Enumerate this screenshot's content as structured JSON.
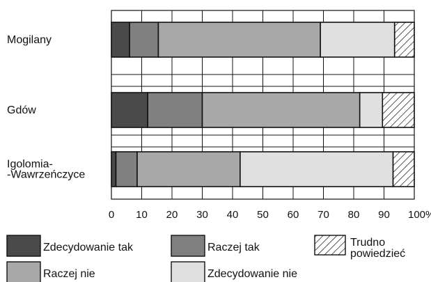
{
  "chart_data": {
    "type": "bar",
    "orientation": "horizontal",
    "stacked": true,
    "categories": [
      "Mogilany",
      "Gdów",
      "Igolomia-\n-Wawrzeńczyce"
    ],
    "xlim": [
      0,
      100
    ],
    "x_ticks": [
      "0",
      "10",
      "20",
      "30",
      "40",
      "50",
      "60",
      "70",
      "80",
      "90",
      "100%"
    ],
    "grid": true,
    "legend_position": "bottom",
    "series": [
      {
        "name": "Zdecydowanie tak",
        "color": "#4a4a4a",
        "pattern": "solid",
        "values": [
          6,
          12,
          1.5
        ]
      },
      {
        "name": "Raczej tak",
        "color": "#808080",
        "pattern": "solid",
        "values": [
          9.5,
          18,
          7
        ]
      },
      {
        "name": "Raczej nie",
        "color": "#a8a8a8",
        "pattern": "solid",
        "values": [
          53.5,
          52,
          34
        ]
      },
      {
        "name": "Zdecydowanie nie",
        "color": "#e0e0e0",
        "pattern": "solid",
        "values": [
          24.5,
          7.5,
          50.5
        ]
      },
      {
        "name": "Trudno\npowiedzieć",
        "color": "#ffffff",
        "pattern": "hatch",
        "values": [
          6.5,
          10.5,
          7
        ]
      }
    ]
  }
}
